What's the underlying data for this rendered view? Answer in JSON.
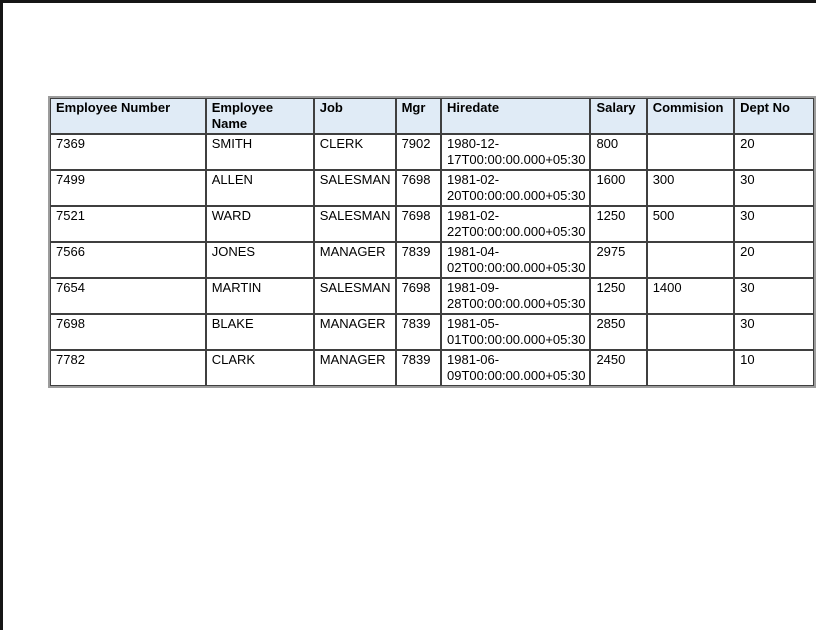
{
  "colors": {
    "header_bg": "#e0ebf6",
    "salary_highlight": "#148a14",
    "grid_line": "#3f3f3f",
    "outer_border": "#9c9c9c",
    "page_frame": "#151515"
  },
  "table": {
    "columns": [
      {
        "key": "empno",
        "label": "Employee Number"
      },
      {
        "key": "ename",
        "label": "Employee Name"
      },
      {
        "key": "job",
        "label": "Job"
      },
      {
        "key": "mgr",
        "label": "Mgr"
      },
      {
        "key": "hiredate",
        "label": "Hiredate"
      },
      {
        "key": "salary",
        "label": "Salary"
      },
      {
        "key": "commission",
        "label": "Commision"
      },
      {
        "key": "deptno",
        "label": "Dept No"
      }
    ],
    "rows": [
      {
        "empno": "7369",
        "ename": "SMITH",
        "job": "CLERK",
        "mgr": "7902",
        "hiredate": "1980-12-17T00:00:00.000+05:30",
        "salary": "800",
        "commission": "",
        "deptno": "20",
        "highlight_salary": false
      },
      {
        "empno": "7499",
        "ename": "ALLEN",
        "job": "SALESMAN",
        "mgr": "7698",
        "hiredate": "1981-02-20T00:00:00.000+05:30",
        "salary": "1600",
        "commission": "300",
        "deptno": "30",
        "highlight_salary": true
      },
      {
        "empno": "7521",
        "ename": "WARD",
        "job": "SALESMAN",
        "mgr": "7698",
        "hiredate": "1981-02-22T00:00:00.000+05:30",
        "salary": "1250",
        "commission": "500",
        "deptno": "30",
        "highlight_salary": true
      },
      {
        "empno": "7566",
        "ename": "JONES",
        "job": "MANAGER",
        "mgr": "7839",
        "hiredate": "1981-04-02T00:00:00.000+05:30",
        "salary": "2975",
        "commission": "",
        "deptno": "20",
        "highlight_salary": true
      },
      {
        "empno": "7654",
        "ename": "MARTIN",
        "job": "SALESMAN",
        "mgr": "7698",
        "hiredate": "1981-09-28T00:00:00.000+05:30",
        "salary": "1250",
        "commission": "1400",
        "deptno": "30",
        "highlight_salary": true
      },
      {
        "empno": "7698",
        "ename": "BLAKE",
        "job": "MANAGER",
        "mgr": "7839",
        "hiredate": "1981-05-01T00:00:00.000+05:30",
        "salary": "2850",
        "commission": "",
        "deptno": "30",
        "highlight_salary": true
      },
      {
        "empno": "7782",
        "ename": "CLARK",
        "job": "MANAGER",
        "mgr": "7839",
        "hiredate": "1981-06-09T00:00:00.000+05:30",
        "salary": "2450",
        "commission": "",
        "deptno": "10",
        "highlight_salary": true
      }
    ]
  }
}
